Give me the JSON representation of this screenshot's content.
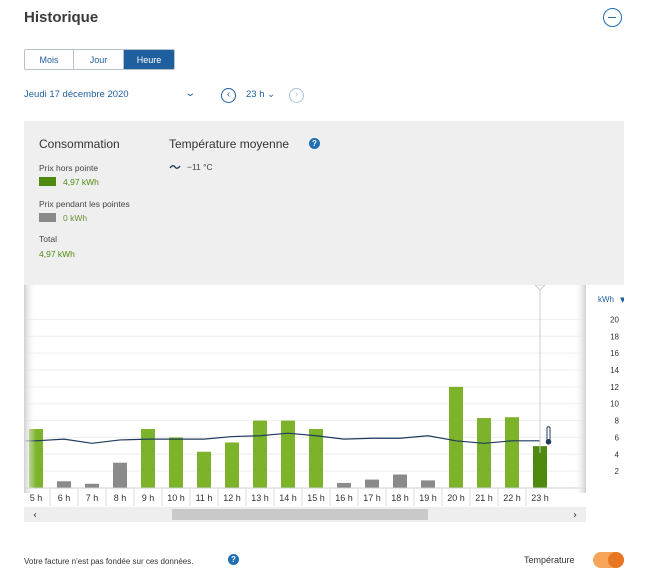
{
  "header": {
    "title": "Historique",
    "collapse_icon": "minus-circle-icon"
  },
  "tabs": [
    {
      "label": "Mois",
      "active": false
    },
    {
      "label": "Jour",
      "active": false
    },
    {
      "label": "Heure",
      "active": true
    }
  ],
  "date_selector": {
    "value": "Jeudi 17 décembre 2020"
  },
  "hour_selector": {
    "value": "23 h"
  },
  "summary": {
    "consumption_title": "Consommation",
    "offpeak_label": "Prix hors pointe",
    "offpeak_value": "4,97 kWh",
    "peak_label": "Prix pendant les pointes",
    "peak_value": "0 kWh",
    "total_label": "Total",
    "total_value": "4,97 kWh",
    "temp_title": "Température moyenne",
    "temp_value": "−11 °C"
  },
  "colors": {
    "offpeak": "#7cb32b",
    "offpeak_selected": "#4f8a10",
    "peak": "#8a8a8a",
    "temperature_line": "#1f3b5c",
    "accent": "#1f5f9e",
    "toggle": "#e87722"
  },
  "chart_data": {
    "type": "bar",
    "y_unit": "kWh",
    "ylim": [
      0,
      21
    ],
    "yticks": [
      2,
      4,
      6,
      8,
      10,
      12,
      14,
      16,
      18,
      20
    ],
    "categories": [
      "5 h",
      "6 h",
      "7 h",
      "8 h",
      "9 h",
      "10 h",
      "11 h",
      "12 h",
      "13 h",
      "14 h",
      "15 h",
      "16 h",
      "17 h",
      "18 h",
      "19 h",
      "20 h",
      "21 h",
      "22 h",
      "23 h"
    ],
    "values": [
      7.0,
      0.8,
      0.5,
      3.0,
      7.0,
      6.0,
      4.3,
      5.4,
      8.0,
      8.0,
      7.0,
      0.6,
      1.0,
      1.6,
      0.9,
      12.0,
      8.3,
      8.4,
      4.97
    ],
    "bar_type": [
      "offpeak",
      "peak",
      "peak",
      "peak",
      "offpeak",
      "offpeak",
      "offpeak",
      "offpeak",
      "offpeak",
      "offpeak",
      "offpeak",
      "peak",
      "peak",
      "peak",
      "peak",
      "offpeak",
      "offpeak",
      "offpeak",
      "offpeak"
    ],
    "temperature_line": [
      5.6,
      5.8,
      5.3,
      5.7,
      5.8,
      5.8,
      5.8,
      6.1,
      6.2,
      6.5,
      6.2,
      5.8,
      5.9,
      5.9,
      6.2,
      5.6,
      5.3,
      5.6,
      5.6
    ],
    "selected_index": 18
  },
  "footer": {
    "disclaimer": "Votre facture n’est pas fondée sur ces données.",
    "toggle_label": "Température",
    "toggle_on": true
  }
}
